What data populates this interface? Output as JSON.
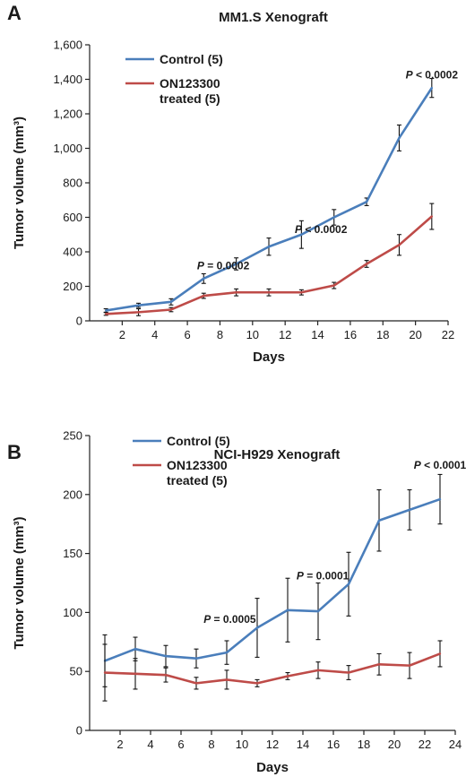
{
  "chart_data": [
    {
      "type": "line",
      "panel_label": "A",
      "title": "MM1.S Xenograft",
      "xlabel": "Days",
      "ylabel": "Tumor volume (mm³)",
      "xlim": [
        0,
        22
      ],
      "ylim": [
        0,
        1600
      ],
      "xticks": [
        2,
        4,
        6,
        8,
        10,
        12,
        14,
        16,
        18,
        20,
        22
      ],
      "yticks": [
        0,
        200,
        400,
        600,
        800,
        1000,
        1200,
        1400,
        1600
      ],
      "ytick_labels": [
        "0",
        "200",
        "400",
        "600",
        "800",
        "1,000",
        "1,200",
        "1,400",
        "1,600"
      ],
      "legend_position": "top-left",
      "series": [
        {
          "name": "Control (5)",
          "color": "#4a7ebb",
          "x": [
            1,
            3,
            5,
            7,
            9,
            11,
            13,
            15,
            17,
            19,
            21
          ],
          "y": [
            60,
            90,
            110,
            245,
            330,
            430,
            500,
            600,
            690,
            1060,
            1350
          ],
          "err": [
            10,
            12,
            18,
            28,
            35,
            50,
            80,
            45,
            22,
            75,
            55
          ]
        },
        {
          "name": "ON123300\ntreated (5)",
          "color": "#be4b48",
          "x": [
            1,
            3,
            5,
            7,
            9,
            11,
            13,
            15,
            17,
            19,
            21
          ],
          "y": [
            40,
            50,
            65,
            145,
            165,
            165,
            165,
            205,
            330,
            440,
            605
          ],
          "err": [
            8,
            20,
            12,
            15,
            20,
            20,
            15,
            18,
            20,
            60,
            75
          ]
        }
      ],
      "annotations": [
        {
          "prefix": "P",
          "text": " = 0.0002",
          "x": 8.2,
          "y": 300
        },
        {
          "prefix": "P",
          "text": " < 0.0002",
          "x": 14.2,
          "y": 510
        },
        {
          "prefix": "P",
          "text": " < 0.0002",
          "x": 21.0,
          "y": 1405
        }
      ]
    },
    {
      "type": "line",
      "panel_label": "B",
      "title": "NCI-H929 Xenograft",
      "xlabel": "Days",
      "ylabel": "Tumor volume (mm³)",
      "xlim": [
        0,
        24
      ],
      "ylim": [
        0,
        250
      ],
      "xticks": [
        2,
        4,
        6,
        8,
        10,
        12,
        14,
        16,
        18,
        20,
        22,
        24
      ],
      "yticks": [
        0,
        50,
        100,
        150,
        200,
        250
      ],
      "ytick_labels": [
        "0",
        "50",
        "100",
        "150",
        "200",
        "250"
      ],
      "legend_position": "top-left",
      "series": [
        {
          "name": "Control (5)",
          "color": "#4a7ebb",
          "x": [
            1,
            3,
            5,
            7,
            9,
            11,
            13,
            15,
            17,
            19,
            21,
            23
          ],
          "y": [
            59,
            69,
            63,
            61,
            66,
            87,
            102,
            101,
            124,
            178,
            187,
            196
          ],
          "err": [
            22,
            10,
            9,
            8,
            10,
            25,
            27,
            24,
            27,
            26,
            17,
            21
          ]
        },
        {
          "name": "ON123300\ntreated (5)",
          "color": "#be4b48",
          "x": [
            1,
            3,
            5,
            7,
            9,
            11,
            13,
            15,
            17,
            19,
            21,
            23
          ],
          "y": [
            49,
            48,
            47,
            40,
            43,
            40,
            46,
            51,
            49,
            56,
            55,
            65
          ],
          "err": [
            24,
            13,
            6,
            5,
            8,
            3,
            3,
            7,
            6,
            9,
            11,
            11
          ]
        }
      ],
      "annotations": [
        {
          "prefix": "P",
          "text": " = 0.0005",
          "x": 9.2,
          "y": 91
        },
        {
          "prefix": "P",
          "text": " = 0.0001",
          "x": 15.3,
          "y": 128
        },
        {
          "prefix": "P",
          "text": " < 0.0001",
          "x": 23.0,
          "y": 222
        }
      ]
    }
  ]
}
